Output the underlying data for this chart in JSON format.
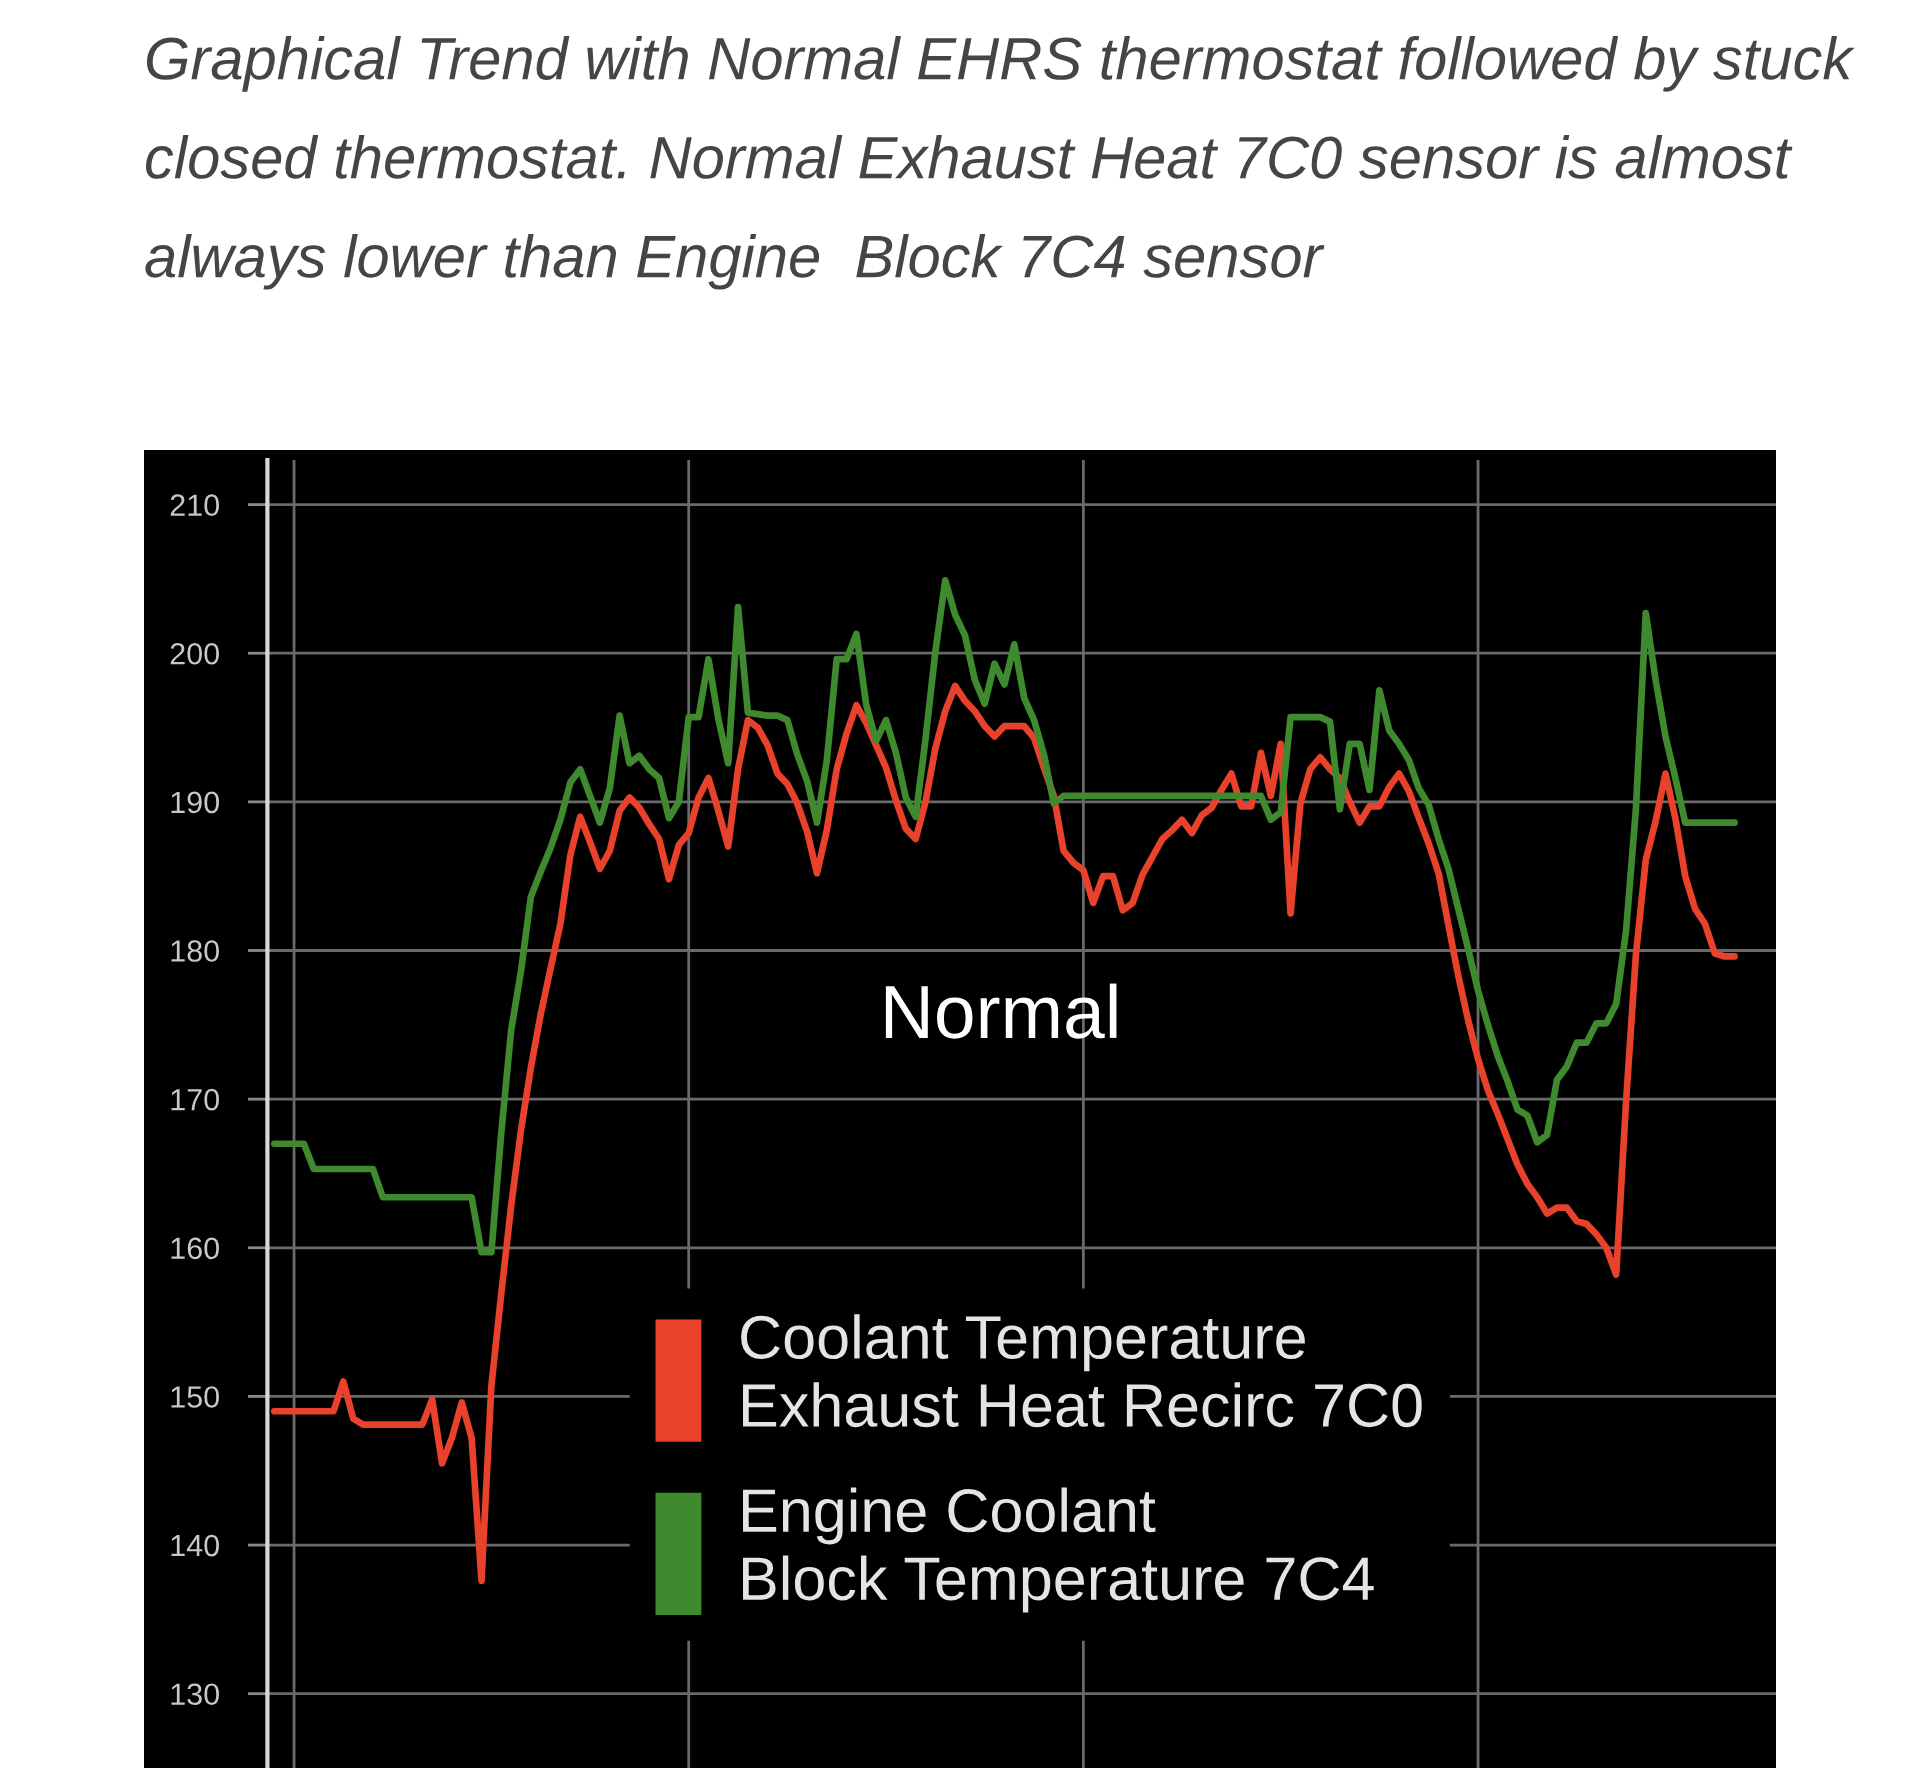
{
  "chart_data": {
    "type": "line",
    "title": "Graphical Trend with Normal EHRS thermostat followed by stuck closed thermostat. Normal Exhaust Heat 7C0 sensor is almost always lower than Engine  Block 7C4 sensor",
    "annotations": [
      "Normal"
    ],
    "categories": [
      null,
      null,
      null,
      null,
      null,
      null,
      null,
      null,
      null,
      null,
      null,
      null,
      null,
      null,
      null,
      null,
      null,
      null,
      null,
      null,
      null,
      null,
      null,
      null,
      null,
      null,
      null,
      null,
      null,
      null,
      null,
      null,
      null,
      null,
      null,
      null,
      null,
      null,
      null,
      null,
      null,
      null,
      null,
      null,
      null,
      null,
      null,
      null,
      null,
      null,
      null,
      null,
      null,
      null,
      null,
      null,
      null,
      null,
      null,
      null,
      null,
      null,
      null,
      null,
      null,
      null,
      null,
      null,
      null,
      null,
      null,
      null,
      null,
      null,
      null,
      null,
      null,
      null,
      null,
      null,
      null,
      null,
      null,
      null,
      null,
      null,
      null,
      null,
      null,
      null,
      null,
      null,
      null,
      null,
      null,
      null,
      null,
      null,
      null,
      null,
      null,
      null,
      null,
      null,
      null,
      null,
      null,
      null,
      null,
      null,
      null,
      null,
      null,
      null,
      null,
      null,
      null,
      null,
      null,
      null,
      null,
      null,
      null,
      null,
      null,
      null,
      null,
      null,
      null,
      null,
      null,
      null,
      null,
      null,
      null,
      null,
      null,
      null,
      null,
      null,
      null,
      null,
      null,
      null,
      null,
      null,
      null,
      null,
      null
    ],
    "ylim": [
      125,
      213
    ],
    "yticks": [
      130,
      140,
      150,
      160,
      170,
      180,
      190,
      200,
      210
    ],
    "tick_labels": "y",
    "grid": true,
    "legend": "bottom",
    "series": [
      {
        "name": "Coolant Temperature\nExhaust Heat Recirc 7C0",
        "color": "#e8412c",
        "values": [
          149.0,
          149.0,
          149.0,
          149.0,
          149.0,
          149.0,
          149.0,
          151.0,
          148.5,
          148.1,
          148.1,
          148.1,
          148.1,
          148.1,
          148.1,
          148.1,
          149.8,
          145.5,
          147.2,
          149.6,
          147.2,
          137.6,
          150.7,
          156.9,
          162.8,
          167.9,
          172.1,
          175.7,
          178.8,
          181.8,
          186.4,
          189.0,
          187.3,
          185.5,
          186.7,
          189.4,
          190.3,
          189.6,
          188.5,
          187.5,
          184.8,
          187.1,
          187.9,
          190.3,
          191.6,
          189.4,
          187.0,
          192.2,
          195.5,
          195.0,
          193.8,
          191.9,
          191.2,
          189.9,
          188.0,
          185.2,
          188.1,
          192.2,
          194.6,
          196.5,
          195.3,
          193.8,
          192.3,
          190.1,
          188.2,
          187.5,
          190.0,
          193.6,
          196.1,
          197.8,
          196.8,
          196.1,
          195.1,
          194.4,
          195.1,
          195.1,
          195.1,
          194.3,
          192.3,
          190.4,
          186.7,
          185.9,
          185.4,
          183.2,
          185.0,
          185.0,
          182.7,
          183.2,
          185.1,
          186.3,
          187.5,
          188.1,
          188.8,
          187.9,
          189.1,
          189.6,
          190.8,
          191.9,
          189.7,
          189.7,
          193.3,
          190.4,
          193.9,
          182.5,
          189.9,
          192.2,
          193.0,
          192.2,
          191.6,
          190.0,
          188.6,
          189.7,
          189.7,
          191.0,
          191.9,
          190.7,
          188.9,
          187.2,
          185.2,
          181.7,
          178.3,
          175.3,
          172.7,
          170.6,
          169.0,
          167.3,
          165.6,
          164.3,
          163.4,
          162.3,
          162.7,
          162.7,
          161.8,
          161.6,
          160.9,
          160.0,
          158.2,
          169.8,
          179.7,
          186.1,
          188.7,
          191.9,
          188.9,
          185.0,
          182.8,
          181.8,
          179.8,
          179.6,
          179.6
        ]
      },
      {
        "name": "Engine Coolant\nBlock Temperature 7C4",
        "color": "#3f8a2e",
        "values": [
          167.0,
          167.0,
          167.0,
          167.0,
          165.3,
          165.3,
          165.3,
          165.3,
          165.3,
          165.3,
          165.3,
          163.4,
          163.4,
          163.4,
          163.4,
          163.4,
          163.4,
          163.4,
          163.4,
          163.4,
          163.4,
          159.7,
          159.7,
          167.7,
          174.6,
          178.6,
          183.6,
          185.3,
          186.9,
          188.8,
          191.3,
          192.2,
          190.4,
          188.6,
          190.9,
          195.8,
          192.6,
          193.1,
          192.2,
          191.6,
          188.9,
          190.0,
          195.7,
          195.7,
          199.6,
          195.6,
          192.6,
          203.1,
          196.0,
          195.9,
          195.8,
          195.8,
          195.5,
          193.2,
          191.4,
          188.6,
          192.8,
          199.6,
          199.6,
          201.3,
          196.5,
          194.1,
          195.5,
          193.3,
          190.3,
          189.0,
          194.2,
          200.1,
          204.9,
          202.6,
          201.2,
          198.2,
          196.6,
          199.3,
          197.9,
          200.6,
          197.0,
          195.5,
          193.2,
          189.9,
          190.4,
          190.4,
          190.4,
          190.4,
          190.4,
          190.4,
          190.4,
          190.4,
          190.4,
          190.4,
          190.4,
          190.4,
          190.4,
          190.4,
          190.4,
          190.4,
          190.4,
          190.4,
          190.4,
          190.4,
          190.4,
          188.8,
          189.3,
          195.7,
          195.7,
          195.7,
          195.7,
          195.4,
          189.5,
          193.9,
          193.9,
          190.8,
          197.5,
          194.8,
          193.9,
          192.8,
          190.9,
          189.8,
          187.5,
          185.5,
          182.8,
          180.1,
          177.3,
          175.0,
          172.9,
          171.2,
          169.3,
          168.9,
          167.1,
          167.6,
          171.3,
          172.2,
          173.8,
          173.8,
          175.1,
          175.1,
          176.4,
          181.3,
          189.5,
          202.7,
          198.2,
          194.4,
          191.6,
          188.6,
          188.6,
          188.6,
          188.6,
          188.6,
          188.6
        ]
      }
    ]
  }
}
